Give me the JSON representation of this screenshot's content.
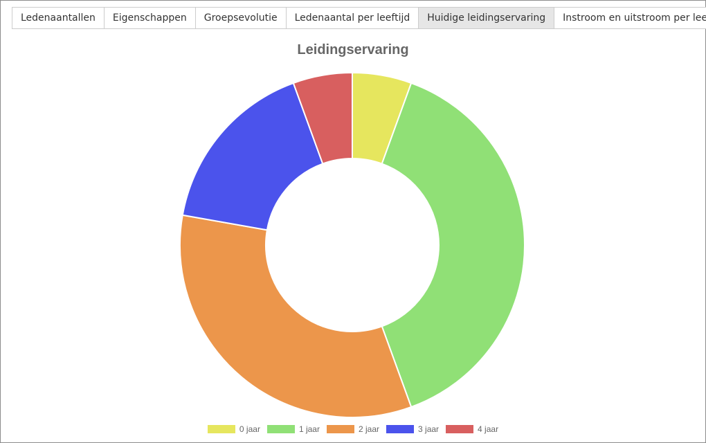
{
  "tabs": [
    {
      "label": "Ledenaantallen",
      "active": false
    },
    {
      "label": "Eigenschappen",
      "active": false
    },
    {
      "label": "Groepsevolutie",
      "active": false
    },
    {
      "label": "Ledenaantal per leeftijd",
      "active": false
    },
    {
      "label": "Huidige leidingservaring",
      "active": true
    },
    {
      "label": "Instroom en uitstroom per leeftijd",
      "active": false
    }
  ],
  "chart_data": {
    "type": "pie",
    "variant": "doughnut",
    "title": "Leidingservaring",
    "legend_position": "bottom",
    "categories": [
      "0 jaar",
      "1 jaar",
      "2 jaar",
      "3 jaar",
      "4 jaar"
    ],
    "values": [
      1,
      7,
      6,
      3,
      1
    ],
    "colors": [
      "#e6e65e",
      "#90e076",
      "#ec964b",
      "#4b53ec",
      "#d85f5f"
    ]
  }
}
